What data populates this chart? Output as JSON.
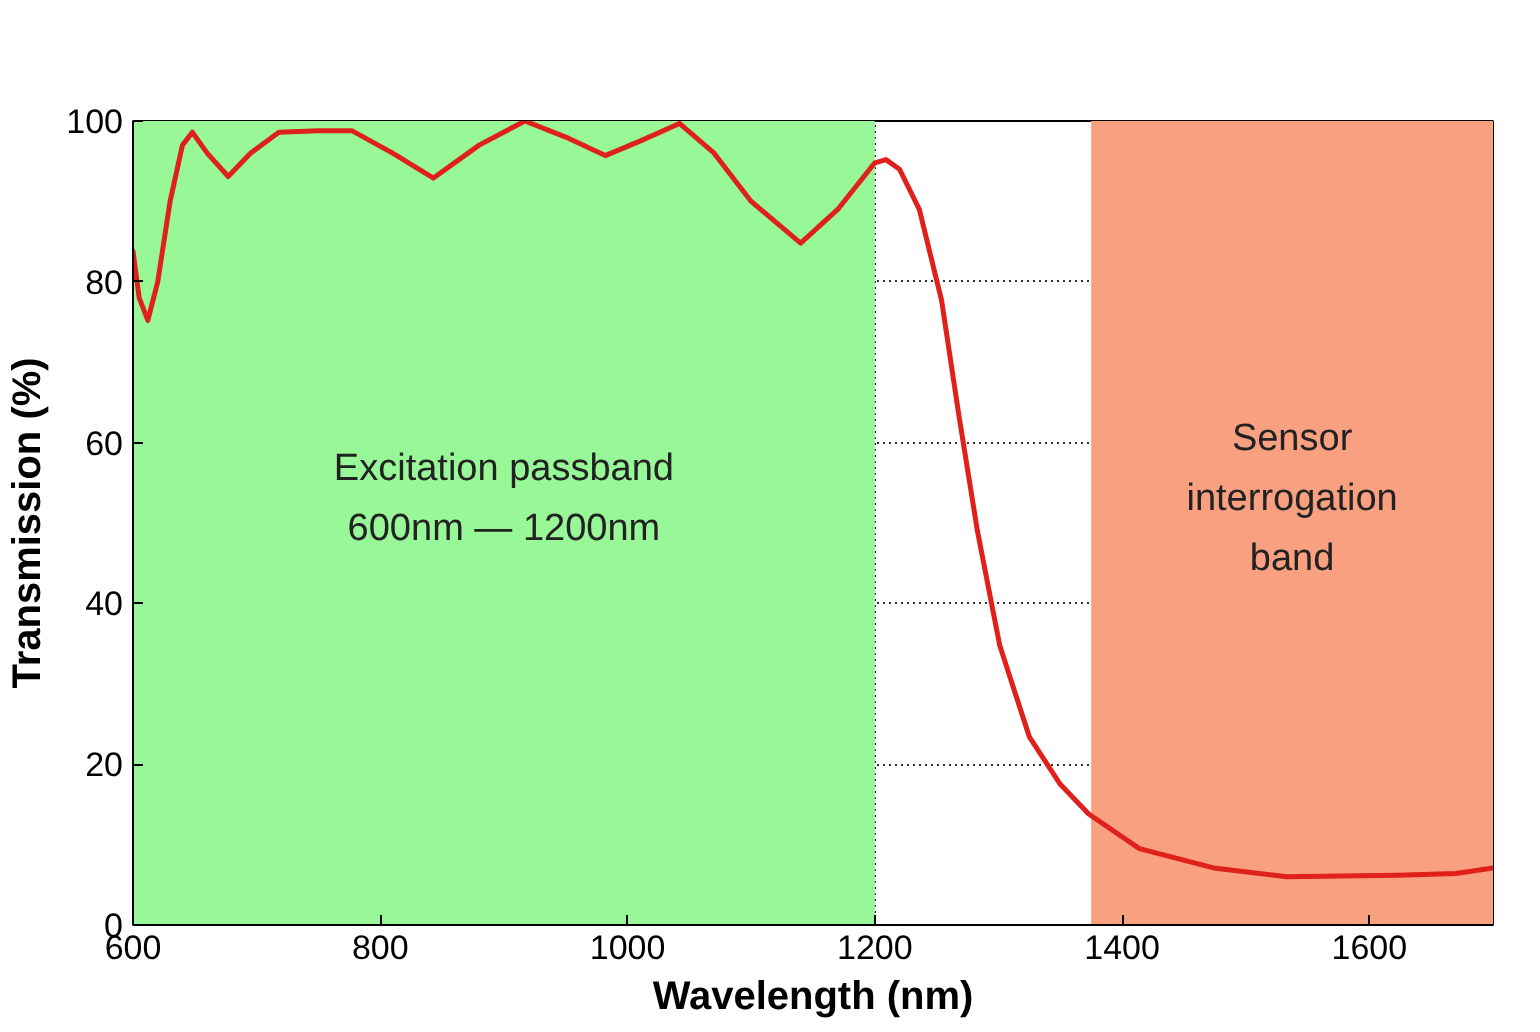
{
  "chart_data": {
    "type": "line",
    "xlabel": "Wavelength (nm)",
    "ylabel": "Transmission (%)",
    "x": [
      600,
      605,
      612,
      620,
      630,
      640,
      648,
      660,
      677,
      695,
      718,
      750,
      777,
      810,
      843,
      880,
      917,
      950,
      982,
      1010,
      1042,
      1070,
      1100,
      1140,
      1170,
      1200,
      1209,
      1220,
      1236,
      1254,
      1268,
      1283,
      1301,
      1325,
      1350,
      1373,
      1414,
      1474,
      1533,
      1623,
      1670,
      1700
    ],
    "series": [
      {
        "color": "#e0201a",
        "values": [
          83.8,
          78,
          75.2,
          80,
          90,
          97,
          98.6,
          96,
          93.1,
          96,
          98.6,
          98.8,
          98.8,
          96,
          92.9,
          97,
          100,
          98,
          95.7,
          97.5,
          99.7,
          96,
          90,
          84.8,
          89,
          94.8,
          95.2,
          94,
          89,
          77.7,
          63.4,
          49,
          34.8,
          23.4,
          17.5,
          13.8,
          9.5,
          7.1,
          6.0,
          6.2,
          6.4,
          7.1
        ]
      }
    ],
    "xlim": [
      600,
      1700
    ],
    "ylim": [
      0,
      100
    ],
    "xticks": [
      600,
      800,
      1000,
      1200,
      1400,
      1600
    ],
    "yticks": [
      0,
      20,
      40,
      60,
      80,
      100
    ],
    "grid": true,
    "line_style": "solid",
    "marker": "none",
    "bands": [
      {
        "axis": "x",
        "from": 600,
        "to": 1200,
        "label": "Excitation passband\n600nm — 1200nm",
        "color": "#98f898"
      },
      {
        "axis": "x",
        "from": 1375,
        "to": 1700,
        "label": "Sensor\ninterrogation\nband",
        "color": "#f9a080"
      }
    ]
  }
}
